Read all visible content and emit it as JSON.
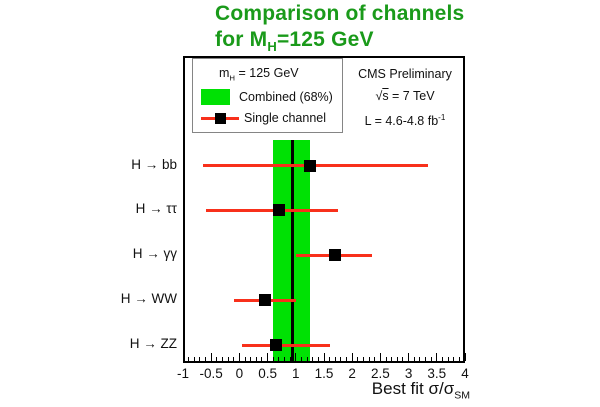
{
  "title": {
    "line1": "Comparison of channels",
    "line2_pre": "for M",
    "line2_sub": "H",
    "line2_post": "=125 GeV"
  },
  "legend": {
    "header_pre": "m",
    "header_sub": "H",
    "header_post": " = 125 GeV",
    "combined_label": "Combined  (68%)",
    "single_label": "Single channel"
  },
  "info": {
    "line1": "CMS Preliminary",
    "line2_pre": "√",
    "line2_s": "s",
    "line2_post": " = 7 TeV",
    "line3_pre": "L = 4.6-4.8 fb",
    "line3_sup": "-1"
  },
  "axis": {
    "x_label_main": "Best fit σ/σ",
    "x_label_sub": "SM",
    "tick_labels": [
      "-1",
      "-0.5",
      "0",
      "0.5",
      "1",
      "1.5",
      "2",
      "2.5",
      "3",
      "3.5",
      "4"
    ]
  },
  "colors": {
    "title_green": "#1a9a1a",
    "band_green": "#00e104",
    "error_red": "#f8301b",
    "marker_black": "#000000"
  },
  "chart_data": {
    "type": "scatter",
    "title": "Comparison of channels for MH=125 GeV",
    "xlabel": "Best fit σ/σ_SM",
    "xlim": [
      -1,
      4
    ],
    "x_major_tick_step": 0.5,
    "x_minor_tick_step": 0.1,
    "grid": false,
    "legend_position": "top-left-inside",
    "combined": {
      "label": "Combined (68%)",
      "best_fit": 0.95,
      "band_68": [
        0.6,
        1.25
      ]
    },
    "channels": [
      {
        "label": "H → bb",
        "best_fit": 1.25,
        "err_lo_end": -0.65,
        "err_hi_end": 3.35
      },
      {
        "label": "H → ττ",
        "best_fit": 0.7,
        "err_lo_end": -0.6,
        "err_hi_end": 1.75
      },
      {
        "label": "H → γγ",
        "best_fit": 1.7,
        "err_lo_end": 1.0,
        "err_hi_end": 2.35
      },
      {
        "label": "H → WW",
        "best_fit": 0.45,
        "err_lo_end": -0.1,
        "err_hi_end": 1.0
      },
      {
        "label": "H → ZZ",
        "best_fit": 0.65,
        "err_lo_end": 0.05,
        "err_hi_end": 1.6
      }
    ]
  }
}
